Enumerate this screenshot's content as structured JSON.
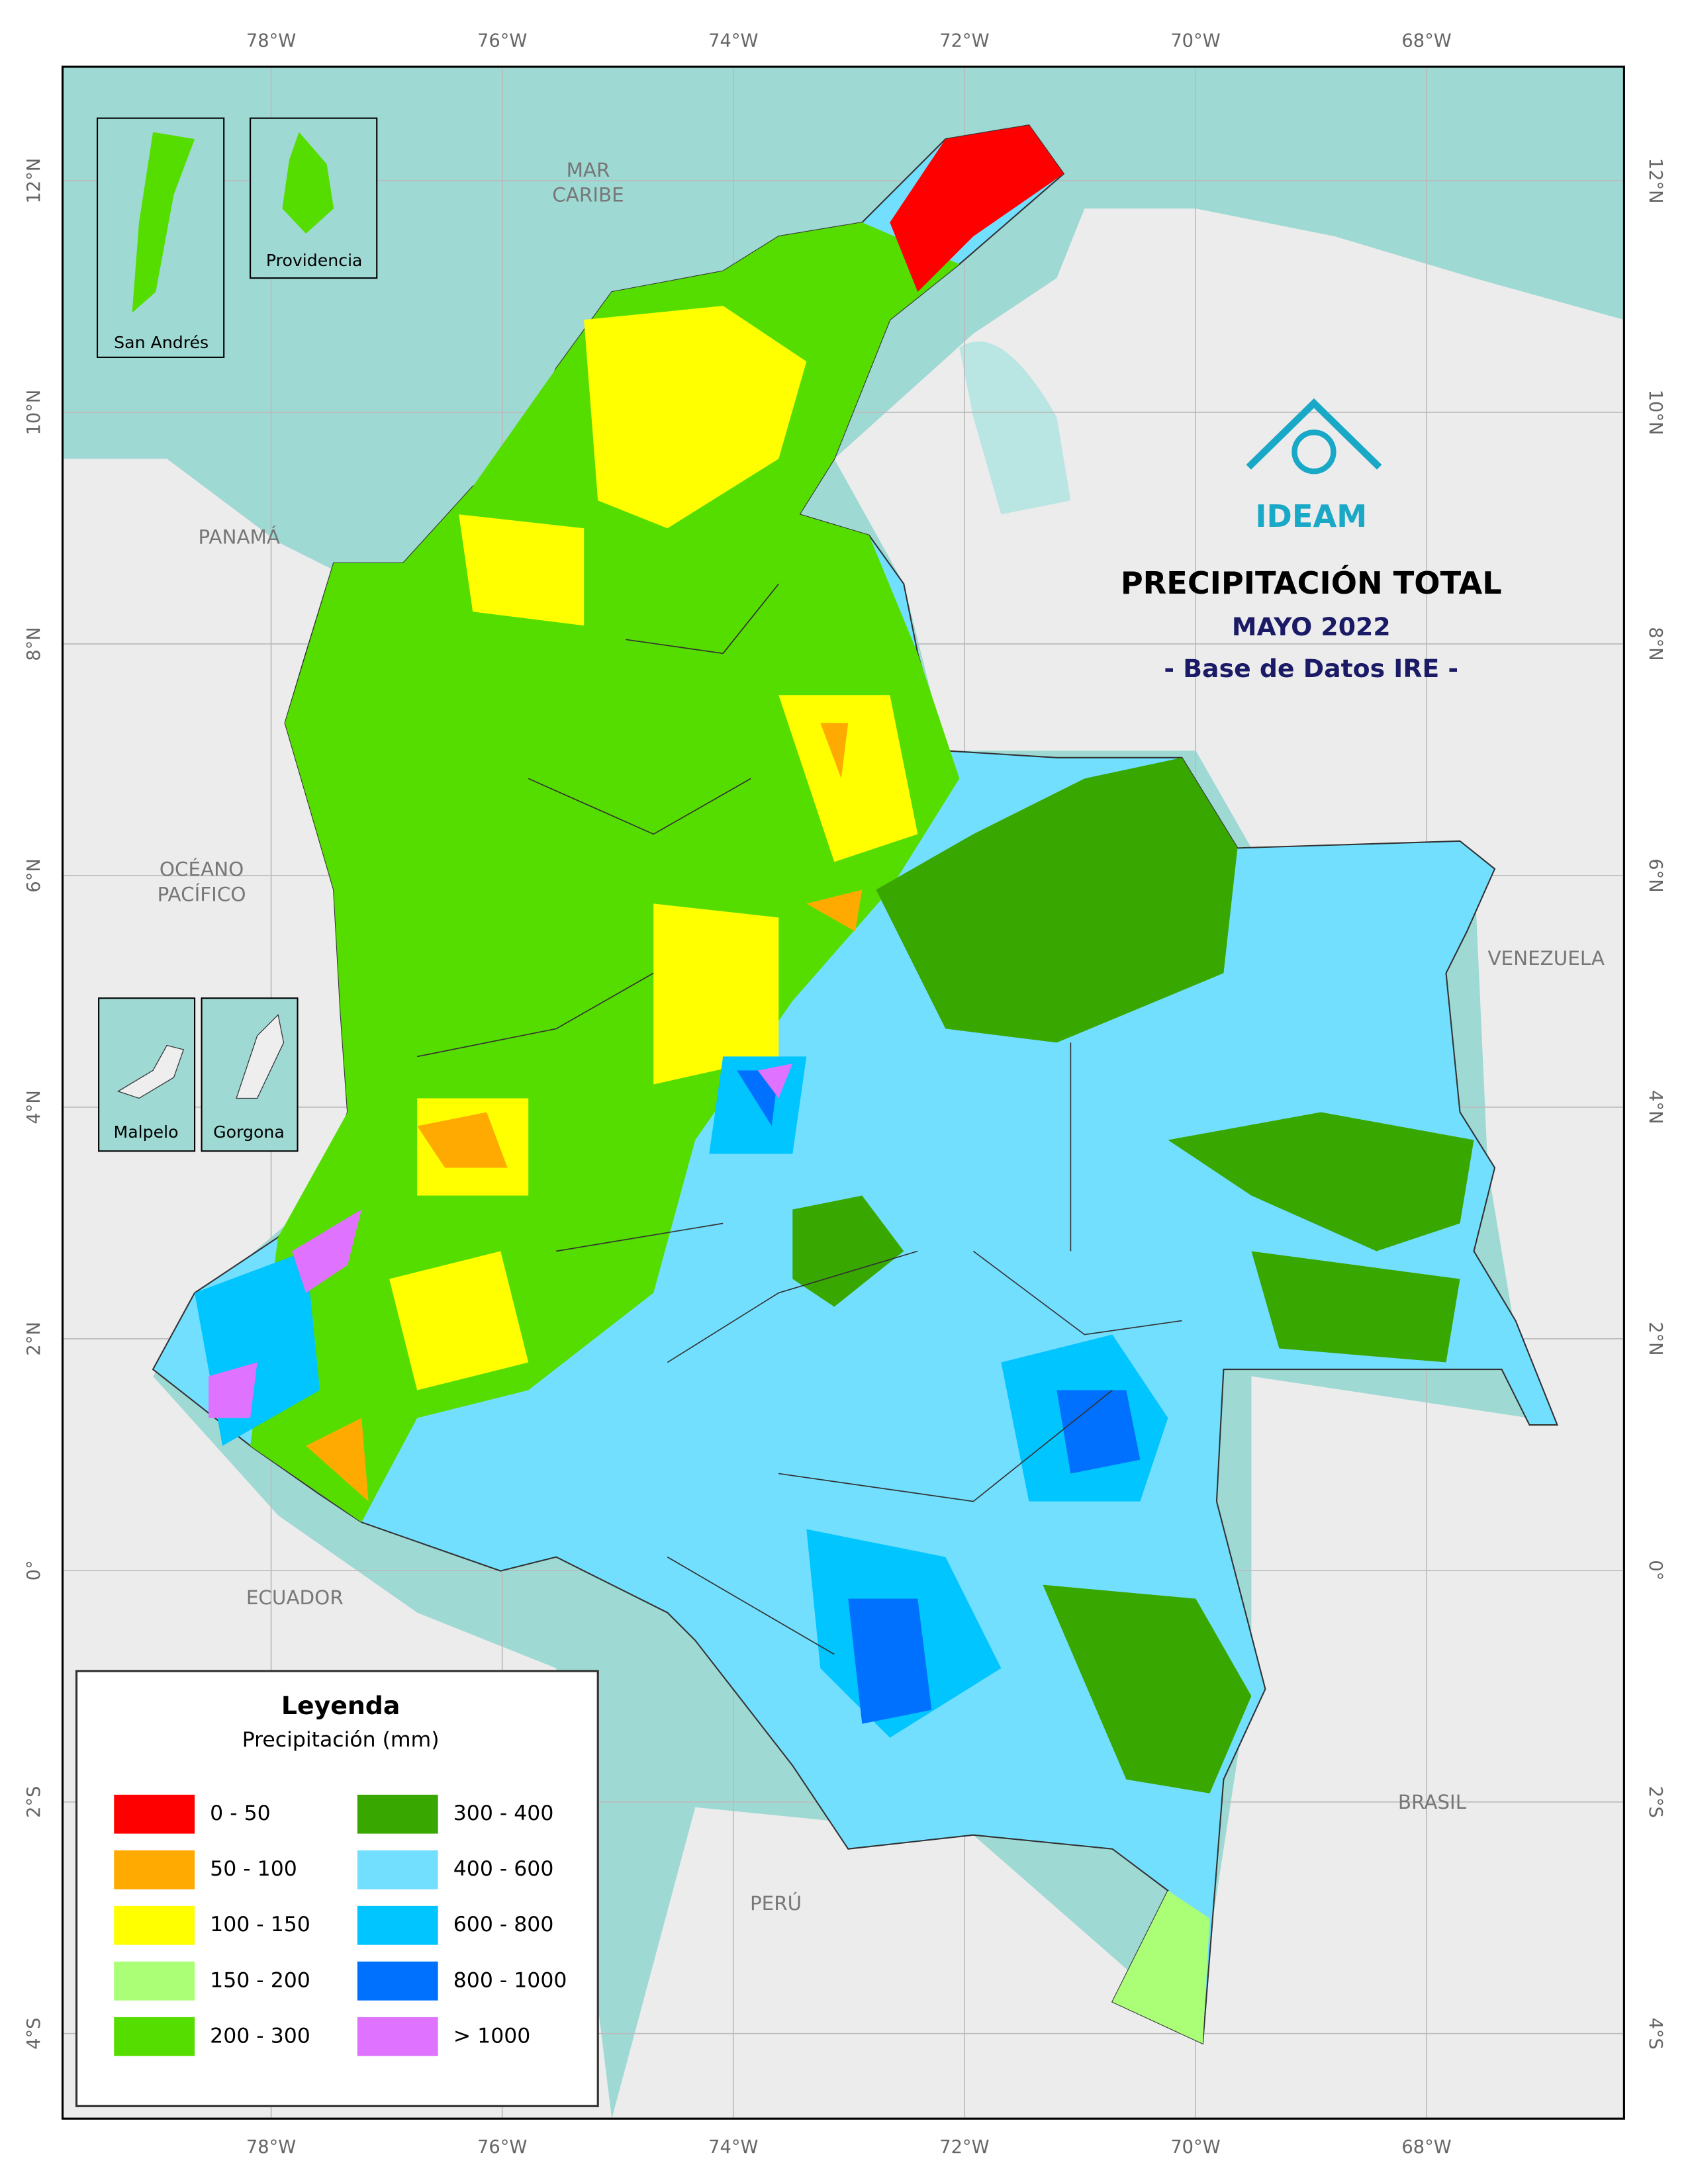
{
  "map": {
    "title": "PRECIPITACIÓN TOTAL",
    "subtitle": "MAYO 2022",
    "source": "- Base de Datos IRE -",
    "logo": "IDEAM",
    "longitude_labels": [
      "78°W",
      "76°W",
      "74°W",
      "72°W",
      "70°W",
      "68°W"
    ],
    "latitude_labels": [
      "12°N",
      "10°N",
      "8°N",
      "6°N",
      "4°N",
      "2°N",
      "0°",
      "2°S",
      "4°S"
    ],
    "places": [
      {
        "lines": [
          "MAR",
          "CARIBE"
        ]
      },
      {
        "lines": [
          "PANAMÁ"
        ]
      },
      {
        "lines": [
          "OCÉANO",
          "PACÍFICO"
        ]
      },
      {
        "lines": [
          "VENEZUELA"
        ]
      },
      {
        "lines": [
          "ECUADOR"
        ]
      },
      {
        "lines": [
          "BRASIL"
        ]
      },
      {
        "lines": [
          "PERÚ"
        ]
      }
    ],
    "insets": [
      "San Andrés",
      "Providencia",
      "Malpelo",
      "Gorgona"
    ],
    "legend": {
      "title": "Leyenda",
      "subtitle": "Precipitación (mm)",
      "items": [
        {
          "label": "0 - 50",
          "color": "#ff0000"
        },
        {
          "label": "50 - 100",
          "color": "#ffaa00"
        },
        {
          "label": "100 - 150",
          "color": "#ffff00"
        },
        {
          "label": "150 - 200",
          "color": "#aaff77"
        },
        {
          "label": "200 - 300",
          "color": "#55dd00"
        },
        {
          "label": "300 - 400",
          "color": "#38a800"
        },
        {
          "label": "400 - 600",
          "color": "#73dfff"
        },
        {
          "label": "600 - 800",
          "color": "#00c5ff"
        },
        {
          "label": "800 - 1000",
          "color": "#0070ff"
        },
        {
          "label": "> 1000",
          "color": "#df73ff"
        }
      ]
    }
  }
}
